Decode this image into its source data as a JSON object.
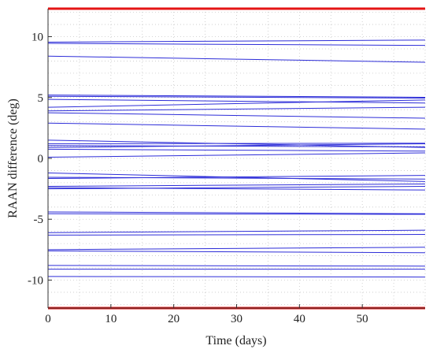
{
  "chart_data": {
    "type": "line",
    "title": "",
    "xlabel": "Time (days)",
    "ylabel": "RAAN difference (deg)",
    "xlim": [
      0,
      60
    ],
    "ylim": [
      -12.3,
      12.3
    ],
    "xticks": [
      0,
      10,
      20,
      30,
      40,
      50
    ],
    "yticks": [
      -10,
      -5,
      0,
      5,
      10
    ],
    "grid": true,
    "legend": "none",
    "colors": {
      "series": "#2d2dd8",
      "limit": "#e41414",
      "grid": "#c8c8c8",
      "axis": "#333333"
    },
    "limit_lines": [
      12.3,
      -12.3
    ],
    "series": [
      {
        "values": [
          [
            0,
            9.55
          ],
          [
            60,
            9.72
          ]
        ]
      },
      {
        "values": [
          [
            0,
            9.45
          ],
          [
            60,
            9.28
          ]
        ]
      },
      {
        "values": [
          [
            0,
            8.4
          ],
          [
            60,
            7.9
          ]
        ]
      },
      {
        "values": [
          [
            0,
            5.2
          ],
          [
            60,
            5.02
          ]
        ]
      },
      {
        "values": [
          [
            0,
            5.1
          ],
          [
            60,
            4.95
          ]
        ]
      },
      {
        "values": [
          [
            0,
            4.85
          ],
          [
            60,
            4.55
          ]
        ]
      },
      {
        "values": [
          [
            0,
            4.2
          ],
          [
            60,
            4.8
          ]
        ]
      },
      {
        "values": [
          [
            0,
            3.9
          ],
          [
            60,
            4.2
          ]
        ]
      },
      {
        "values": [
          [
            0,
            3.75
          ],
          [
            60,
            3.3
          ]
        ]
      },
      {
        "values": [
          [
            0,
            2.9
          ],
          [
            60,
            2.4
          ]
        ]
      },
      {
        "values": [
          [
            0,
            1.5
          ],
          [
            60,
            0.9
          ]
        ]
      },
      {
        "values": [
          [
            0,
            1.2
          ],
          [
            60,
            1.25
          ]
        ]
      },
      {
        "values": [
          [
            0,
            1.05
          ],
          [
            60,
            0.95
          ]
        ]
      },
      {
        "values": [
          [
            0,
            0.9
          ],
          [
            60,
            1.2
          ]
        ]
      },
      {
        "values": [
          [
            0,
            0.75
          ],
          [
            60,
            0.6
          ]
        ]
      },
      {
        "values": [
          [
            0,
            0.1
          ],
          [
            60,
            0.45
          ]
        ]
      },
      {
        "values": [
          [
            0,
            -1.2
          ],
          [
            60,
            -1.9
          ]
        ]
      },
      {
        "values": [
          [
            0,
            -1.55
          ],
          [
            60,
            -1.7
          ]
        ]
      },
      {
        "values": [
          [
            0,
            -1.65
          ],
          [
            60,
            -1.4
          ]
        ]
      },
      {
        "values": [
          [
            0,
            -2.3
          ],
          [
            60,
            -2.1
          ]
        ]
      },
      {
        "values": [
          [
            0,
            -2.4
          ],
          [
            60,
            -2.6
          ]
        ]
      },
      {
        "values": [
          [
            0,
            -2.5
          ],
          [
            60,
            -2.3
          ]
        ]
      },
      {
        "values": [
          [
            0,
            -4.4
          ],
          [
            60,
            -4.55
          ]
        ]
      },
      {
        "values": [
          [
            0,
            -4.55
          ],
          [
            60,
            -4.6
          ]
        ]
      },
      {
        "values": [
          [
            0,
            -6.1
          ],
          [
            60,
            -5.9
          ]
        ]
      },
      {
        "values": [
          [
            0,
            -6.3
          ],
          [
            60,
            -6.25
          ]
        ]
      },
      {
        "values": [
          [
            0,
            -7.5
          ],
          [
            60,
            -7.3
          ]
        ]
      },
      {
        "values": [
          [
            0,
            -7.6
          ],
          [
            60,
            -7.75
          ]
        ]
      },
      {
        "values": [
          [
            0,
            -8.8
          ],
          [
            60,
            -8.85
          ]
        ]
      },
      {
        "values": [
          [
            0,
            -9.1
          ],
          [
            60,
            -9.1
          ]
        ]
      },
      {
        "values": [
          [
            0,
            -9.7
          ],
          [
            60,
            -9.75
          ]
        ]
      }
    ]
  }
}
